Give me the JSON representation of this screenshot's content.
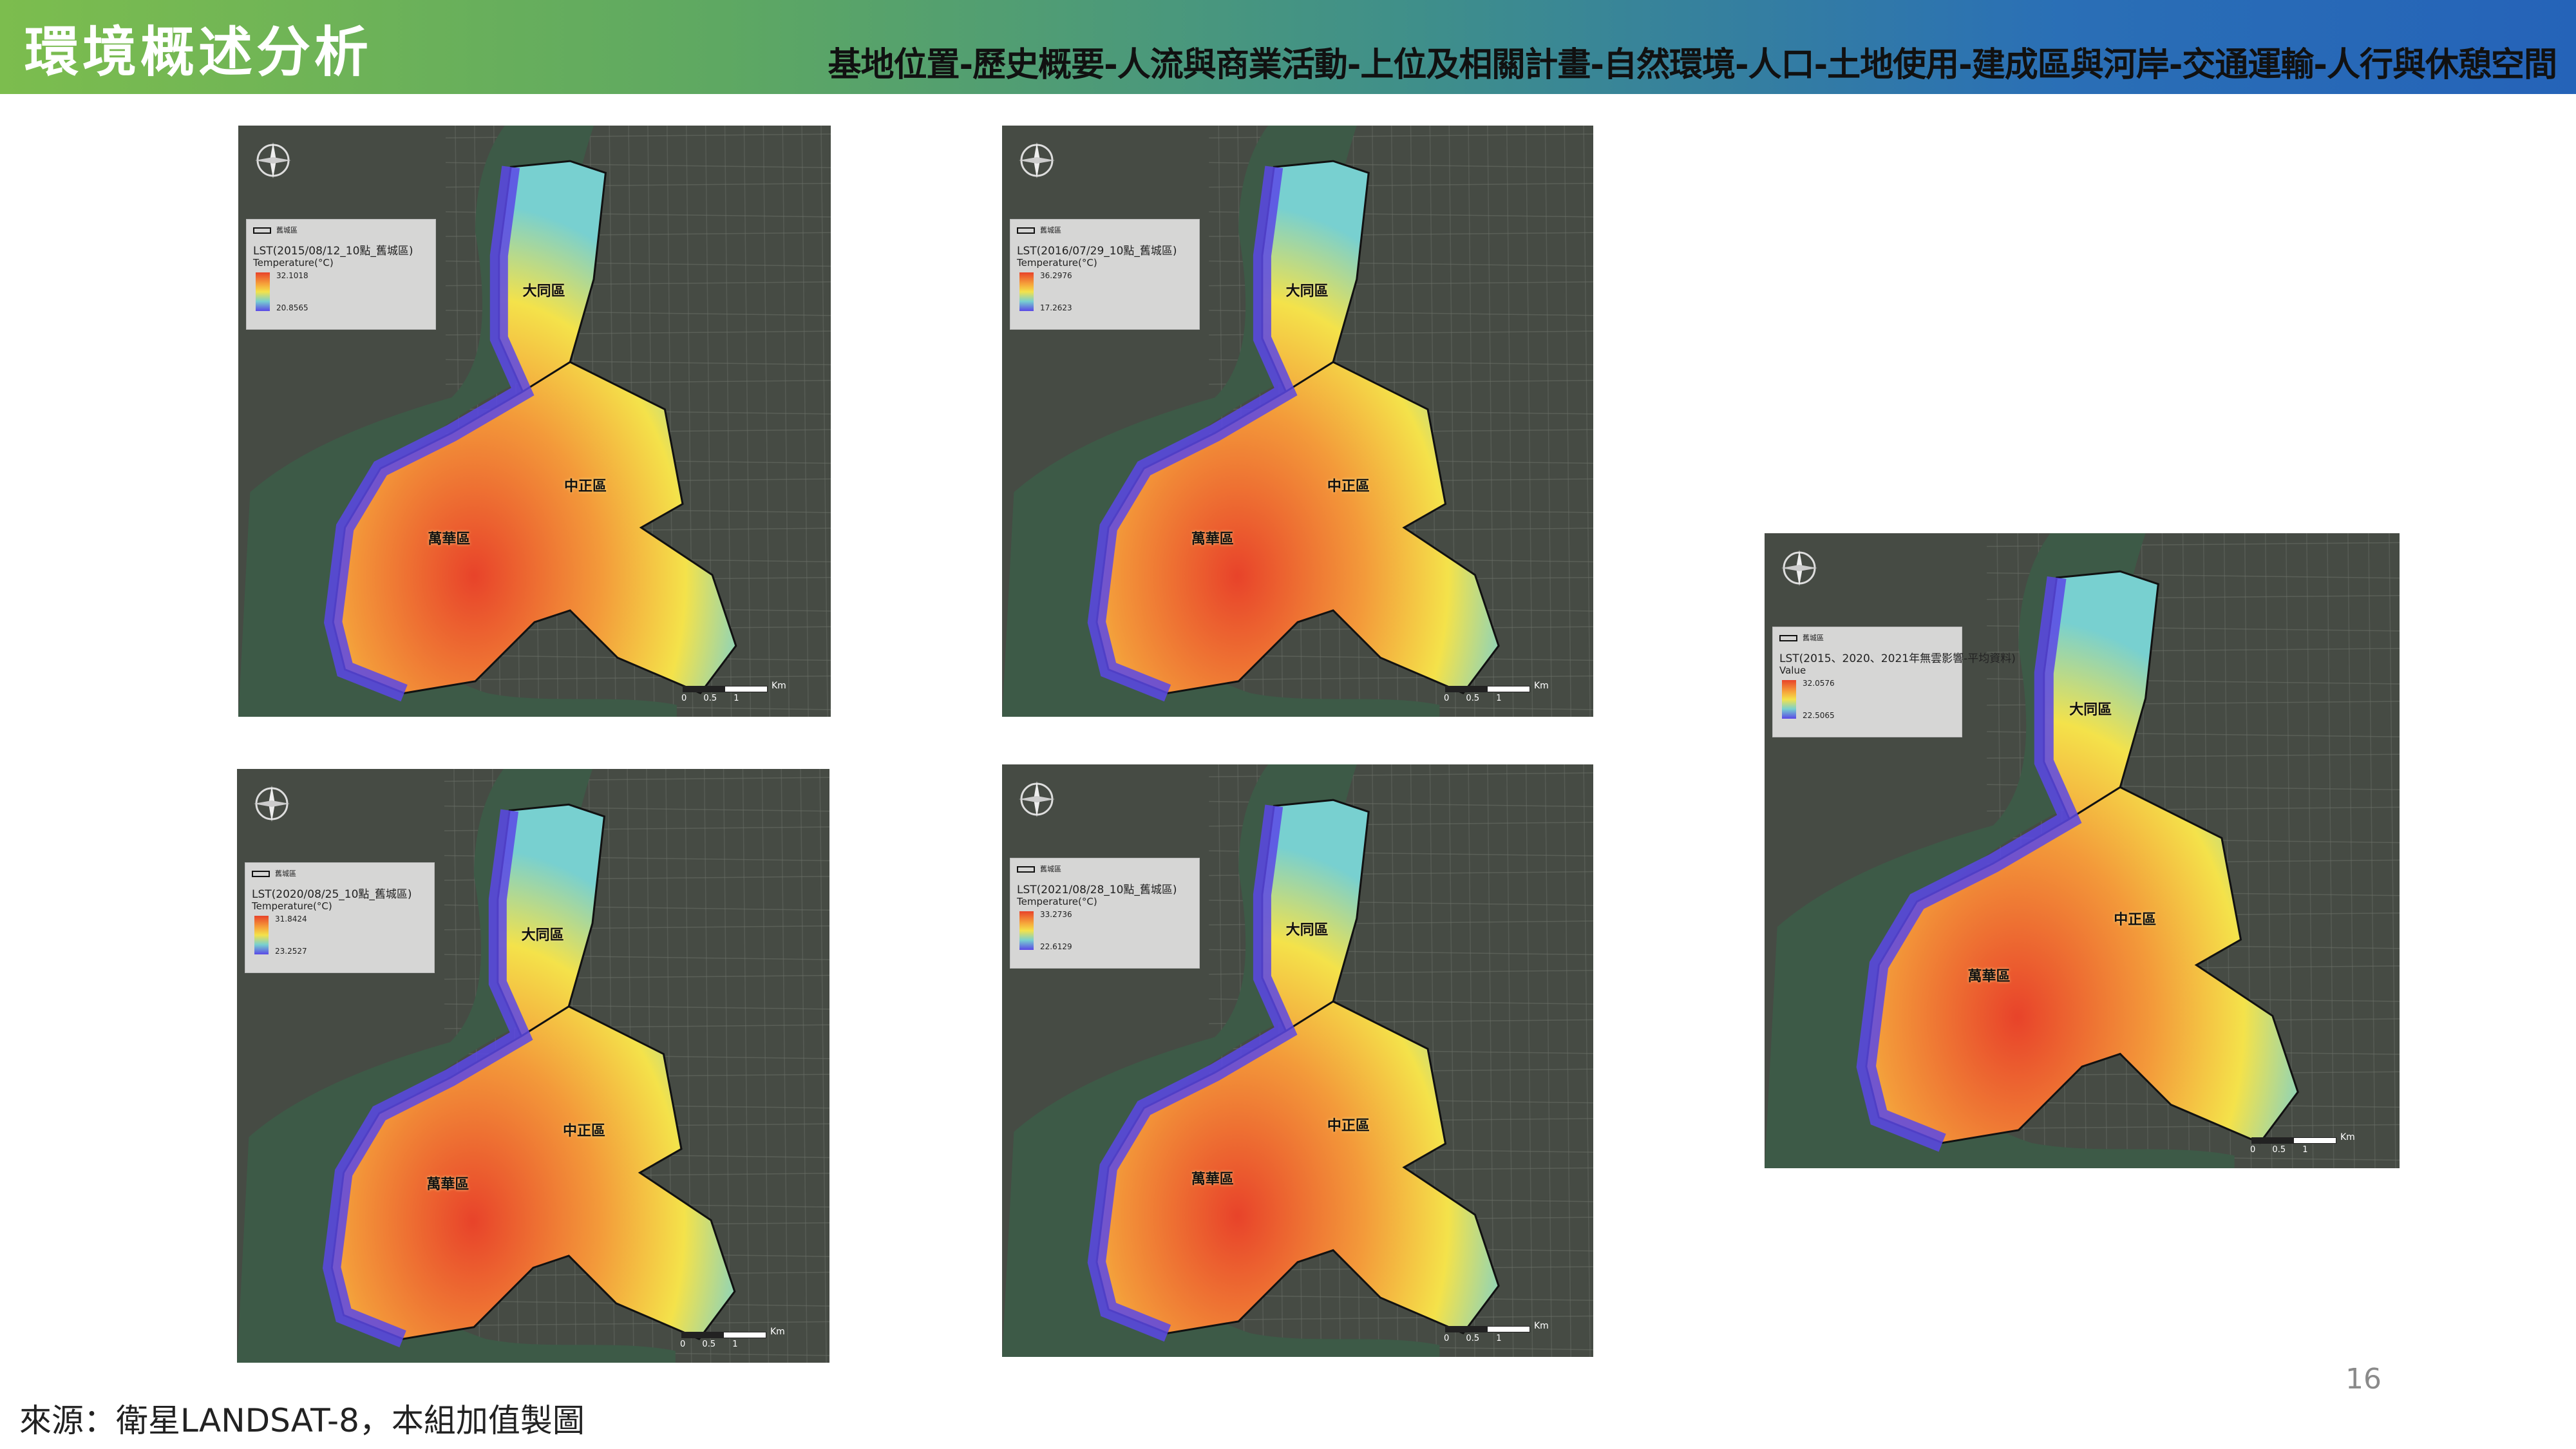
{
  "header": {
    "title": "環境概述分析",
    "nav": [
      "基地位置",
      "歷史概要",
      "人流與商業活動",
      "上位及相關計畫",
      "自然環境",
      "人口",
      "土地使用",
      "建成區與河岸",
      "交通運輸",
      "人行與休憩空間"
    ],
    "colors": {
      "gradient_start": "#7cbd4e",
      "gradient_end": "#2563b8"
    }
  },
  "maps": [
    {
      "legend_boundary": "舊城區",
      "legend_title": "LST(2015/08/12_10點_舊城區)",
      "legend_field": "Temperature(°C)",
      "max": "32.1018",
      "min": "20.8565",
      "districts": [
        "大同區",
        "中正區",
        "萬華區"
      ],
      "scale_unit": "Km",
      "scale_ticks": [
        "0",
        "0.5",
        "1"
      ]
    },
    {
      "legend_boundary": "舊城區",
      "legend_title": "LST(2016/07/29_10點_舊城區)",
      "legend_field": "Temperature(°C)",
      "max": "36.2976",
      "min": "17.2623",
      "districts": [
        "大同區",
        "中正區",
        "萬華區"
      ],
      "scale_unit": "Km",
      "scale_ticks": [
        "0",
        "0.5",
        "1"
      ]
    },
    {
      "legend_boundary": "舊城區",
      "legend_title": "LST(2020/08/25_10點_舊城區)",
      "legend_field": "Temperature(°C)",
      "max": "31.8424",
      "min": "23.2527",
      "districts": [
        "大同區",
        "中正區",
        "萬華區"
      ],
      "scale_unit": "Km",
      "scale_ticks": [
        "0",
        "0.5",
        "1"
      ]
    },
    {
      "legend_boundary": "舊城區",
      "legend_title": "LST(2021/08/28_10點_舊城區)",
      "legend_field": "Temperature(°C)",
      "max": "33.2736",
      "min": "22.6129",
      "districts": [
        "大同區",
        "中正區",
        "萬華區"
      ],
      "scale_unit": "Km",
      "scale_ticks": [
        "0",
        "0.5",
        "1"
      ]
    },
    {
      "legend_boundary": "舊城區",
      "legend_title": "LST(2015、2020、2021年無雲影響-平均資料)",
      "legend_field": "Value",
      "max": "32.0576",
      "min": "22.5065",
      "districts": [
        "大同區",
        "中正區",
        "萬華區"
      ],
      "scale_unit": "Km",
      "scale_ticks": [
        "0",
        "0.5",
        "1"
      ]
    }
  ],
  "ramp_colors": {
    "hot": "#e8432a",
    "mid": "#f4e24a",
    "cool": "#78d0d0",
    "cold": "#5a48e6"
  },
  "footer": {
    "source": "來源：衛星LANDSAT-8，本組加值製圖",
    "page_number": "16"
  }
}
